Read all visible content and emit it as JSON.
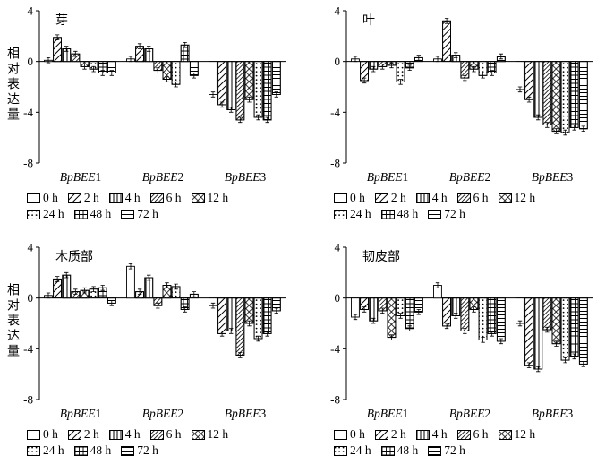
{
  "legend": {
    "items": [
      {
        "label": "0 h",
        "hatch": "none"
      },
      {
        "label": "2 h",
        "hatch": "diag"
      },
      {
        "label": "4 h",
        "hatch": "vert"
      },
      {
        "label": "6 h",
        "hatch": "diag-dense"
      },
      {
        "label": "12 h",
        "hatch": "cross-diag"
      },
      {
        "label": "24 h",
        "hatch": "dots"
      },
      {
        "label": "48 h",
        "hatch": "grid"
      },
      {
        "label": "72 h",
        "hatch": "horiz"
      }
    ]
  },
  "chart_data": [
    {
      "type": "bar",
      "title": "芽",
      "ylabel": "相对表达量",
      "ylim": [
        -8,
        4
      ],
      "yticks": [
        4,
        0,
        -4,
        -8
      ],
      "categories": [
        "BpBEE1",
        "BpBEE2",
        "BpBEE3"
      ],
      "series": [
        {
          "name": "0 h",
          "values": [
            0.1,
            0.2,
            -2.6
          ]
        },
        {
          "name": "2 h",
          "values": [
            1.9,
            1.2,
            -3.4
          ]
        },
        {
          "name": "4 h",
          "values": [
            1.0,
            1.0,
            -3.8
          ]
        },
        {
          "name": "6 h",
          "values": [
            0.6,
            -0.7,
            -4.6
          ]
        },
        {
          "name": "12 h",
          "values": [
            -0.4,
            -1.4,
            -3.0
          ]
        },
        {
          "name": "24 h",
          "values": [
            -0.6,
            -1.8,
            -4.4
          ]
        },
        {
          "name": "48 h",
          "values": [
            -0.9,
            1.3,
            -4.6
          ]
        },
        {
          "name": "72 h",
          "values": [
            -0.9,
            -1.1,
            -2.6
          ]
        }
      ],
      "error_bar": 0.2
    },
    {
      "type": "bar",
      "title": "叶",
      "ylabel": "",
      "ylim": [
        -8,
        4
      ],
      "yticks": [
        4,
        0,
        -4,
        -8
      ],
      "categories": [
        "BpBEE1",
        "BpBEE2",
        "BpBEE3"
      ],
      "series": [
        {
          "name": "0 h",
          "values": [
            0.2,
            0.2,
            -2.2
          ]
        },
        {
          "name": "2 h",
          "values": [
            -1.5,
            3.2,
            -3.0
          ]
        },
        {
          "name": "4 h",
          "values": [
            -0.6,
            0.5,
            -4.4
          ]
        },
        {
          "name": "6 h",
          "values": [
            -0.4,
            -1.3,
            -5.0
          ]
        },
        {
          "name": "12 h",
          "values": [
            -0.3,
            -0.6,
            -5.5
          ]
        },
        {
          "name": "24 h",
          "values": [
            -1.6,
            -1.1,
            -5.6
          ]
        },
        {
          "name": "48 h",
          "values": [
            -0.5,
            -0.9,
            -5.2
          ]
        },
        {
          "name": "72 h",
          "values": [
            0.3,
            0.4,
            -5.3
          ]
        }
      ],
      "error_bar": 0.2
    },
    {
      "type": "bar",
      "title": "木质部",
      "ylabel": "相对表达量",
      "ylim": [
        -8,
        4
      ],
      "yticks": [
        4,
        0,
        -4,
        -8
      ],
      "categories": [
        "BpBEE1",
        "BpBEE2",
        "BpBEE3"
      ],
      "series": [
        {
          "name": "0 h",
          "values": [
            0.2,
            2.5,
            -0.6
          ]
        },
        {
          "name": "2 h",
          "values": [
            1.5,
            0.5,
            -2.8
          ]
        },
        {
          "name": "4 h",
          "values": [
            1.8,
            1.6,
            -2.6
          ]
        },
        {
          "name": "6 h",
          "values": [
            0.5,
            -0.6,
            -4.5
          ]
        },
        {
          "name": "12 h",
          "values": [
            0.6,
            1.0,
            -2.0
          ]
        },
        {
          "name": "24 h",
          "values": [
            0.7,
            0.9,
            -3.2
          ]
        },
        {
          "name": "48 h",
          "values": [
            0.8,
            -0.9,
            -2.8
          ]
        },
        {
          "name": "72 h",
          "values": [
            -0.4,
            0.3,
            -1.0
          ]
        }
      ],
      "error_bar": 0.2
    },
    {
      "type": "bar",
      "title": "韧皮部",
      "ylabel": "",
      "ylim": [
        -8,
        4
      ],
      "yticks": [
        4,
        0,
        -4,
        -8
      ],
      "categories": [
        "BpBEE1",
        "BpBEE2",
        "BpBEE3"
      ],
      "series": [
        {
          "name": "0 h",
          "values": [
            -1.5,
            1.0,
            -2.0
          ]
        },
        {
          "name": "2 h",
          "values": [
            -0.9,
            -2.2,
            -5.3
          ]
        },
        {
          "name": "4 h",
          "values": [
            -1.8,
            -1.4,
            -5.6
          ]
        },
        {
          "name": "6 h",
          "values": [
            -1.0,
            -2.6,
            -2.5
          ]
        },
        {
          "name": "12 h",
          "values": [
            -3.1,
            -0.9,
            -3.6
          ]
        },
        {
          "name": "24 h",
          "values": [
            -1.4,
            -3.3,
            -4.9
          ]
        },
        {
          "name": "48 h",
          "values": [
            -2.4,
            -2.8,
            -4.6
          ]
        },
        {
          "name": "72 h",
          "values": [
            -1.1,
            -3.4,
            -5.2
          ]
        }
      ],
      "error_bar": 0.2
    }
  ]
}
